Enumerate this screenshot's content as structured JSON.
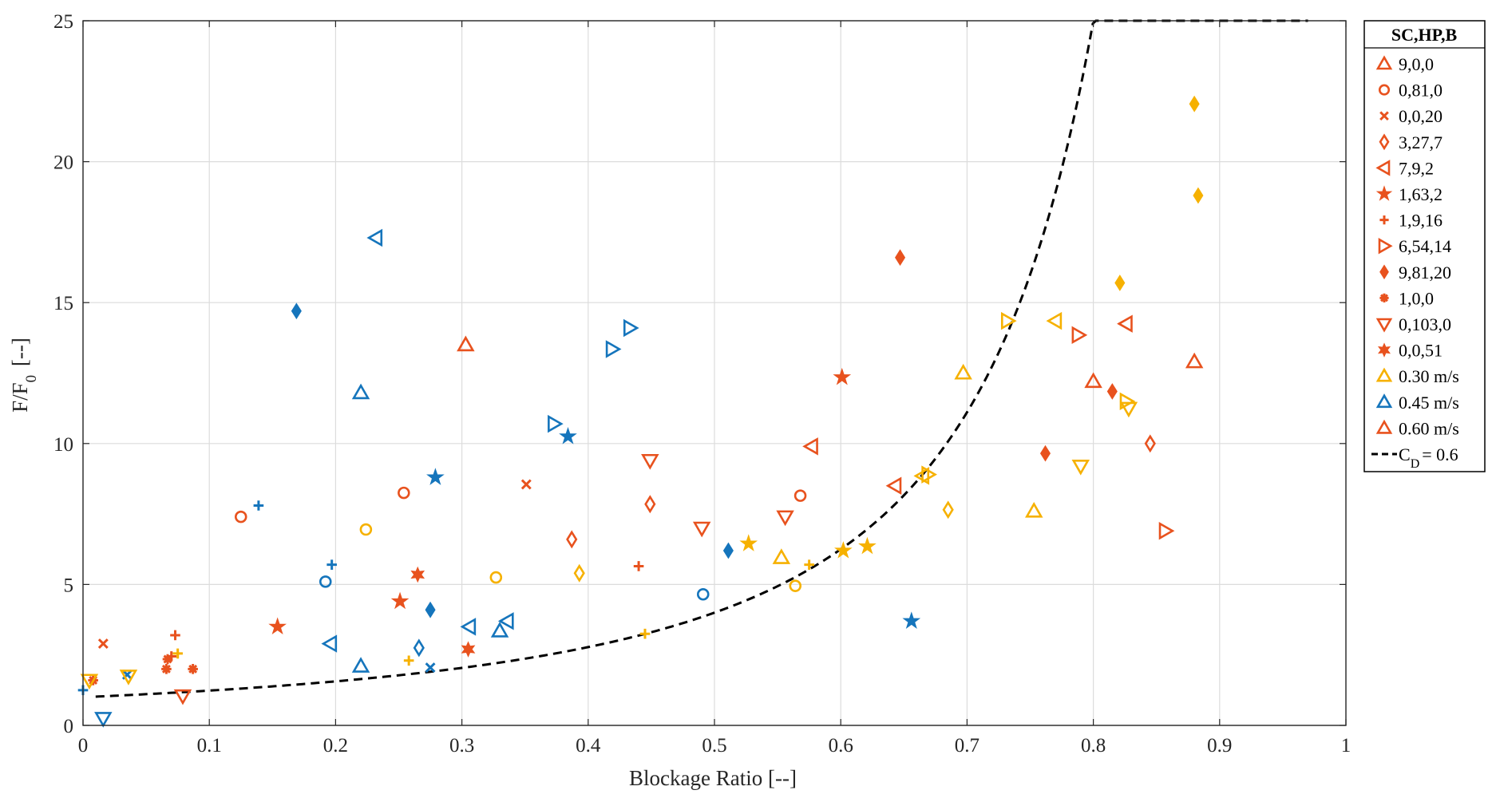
{
  "colors": {
    "orange": "#E8521E",
    "blue": "#1575BC",
    "yellow": "#F6B100",
    "curve": "#000000"
  },
  "chart_data": {
    "type": "scatter",
    "title": "",
    "xlabel": "Blockage Ratio [--]",
    "ylabel_main": "F/F",
    "ylabel_sub": "0",
    "ylabel_tail": " [--]",
    "xlim": [
      0,
      1
    ],
    "ylim": [
      0,
      25
    ],
    "xticks": [
      0,
      0.1,
      0.2,
      0.3,
      0.4,
      0.5,
      0.6,
      0.7,
      0.8,
      0.9,
      1
    ],
    "xtick_labels": [
      "0",
      "0.1",
      "0.2",
      "0.3",
      "0.4",
      "0.5",
      "0.6",
      "0.7",
      "0.8",
      "0.9",
      "1"
    ],
    "yticks": [
      0,
      5,
      10,
      15,
      20,
      25
    ],
    "ytick_labels": [
      "0",
      "5",
      "10",
      "15",
      "20",
      "25"
    ],
    "grid": true,
    "legend_title": "SC,HP,B",
    "legend_position": "outside-right",
    "legend": [
      {
        "label": "9,0,0",
        "marker": "triangle-up"
      },
      {
        "label": "0,81,0",
        "marker": "circle"
      },
      {
        "label": "0,0,20",
        "marker": "x"
      },
      {
        "label": "3,27,7",
        "marker": "diamond"
      },
      {
        "label": "7,9,2",
        "marker": "triangle-left"
      },
      {
        "label": "1,63,2",
        "marker": "star"
      },
      {
        "label": "1,9,16",
        "marker": "plus"
      },
      {
        "label": "6,54,14",
        "marker": "triangle-right"
      },
      {
        "label": "9,81,20",
        "marker": "diamond-filled"
      },
      {
        "label": "1,0,0",
        "marker": "asterisk"
      },
      {
        "label": "0,103,0",
        "marker": "triangle-down"
      },
      {
        "label": "0,0,51",
        "marker": "hexagram"
      },
      {
        "label": "0.30 m/s",
        "marker": "triangle-up",
        "color": "yellow"
      },
      {
        "label": "0.45 m/s",
        "marker": "triangle-up",
        "color": "blue"
      },
      {
        "label": "0.60 m/s",
        "marker": "triangle-up",
        "color": "orange"
      },
      {
        "label": "= 0.6",
        "label_prefix": "C",
        "label_sub": "D",
        "marker": "dashed-line"
      }
    ],
    "curve": {
      "name": "C_D = 0.6",
      "formula": "1/(1-x)^2",
      "x_range": [
        0.01,
        0.97
      ]
    },
    "points": [
      {
        "x": 0.303,
        "y": 13.5,
        "m": "triangle-up",
        "c": "orange"
      },
      {
        "x": 0.8,
        "y": 12.2,
        "m": "triangle-up",
        "c": "orange"
      },
      {
        "x": 0.88,
        "y": 12.9,
        "m": "triangle-up",
        "c": "orange"
      },
      {
        "x": 0.22,
        "y": 11.8,
        "m": "triangle-up",
        "c": "blue"
      },
      {
        "x": 0.22,
        "y": 2.1,
        "m": "triangle-up",
        "c": "blue"
      },
      {
        "x": 0.33,
        "y": 3.35,
        "m": "triangle-up",
        "c": "blue"
      },
      {
        "x": 0.553,
        "y": 5.95,
        "m": "triangle-up",
        "c": "yellow"
      },
      {
        "x": 0.697,
        "y": 12.5,
        "m": "triangle-up",
        "c": "yellow"
      },
      {
        "x": 0.753,
        "y": 7.6,
        "m": "triangle-up",
        "c": "yellow"
      },
      {
        "x": 0.125,
        "y": 7.4,
        "m": "circle",
        "c": "orange"
      },
      {
        "x": 0.254,
        "y": 8.25,
        "m": "circle",
        "c": "orange"
      },
      {
        "x": 0.568,
        "y": 8.15,
        "m": "circle",
        "c": "orange"
      },
      {
        "x": 0.192,
        "y": 5.1,
        "m": "circle",
        "c": "blue"
      },
      {
        "x": 0.491,
        "y": 4.65,
        "m": "circle",
        "c": "blue"
      },
      {
        "x": 0.224,
        "y": 6.95,
        "m": "circle",
        "c": "yellow"
      },
      {
        "x": 0.327,
        "y": 5.25,
        "m": "circle",
        "c": "yellow"
      },
      {
        "x": 0.564,
        "y": 4.95,
        "m": "circle",
        "c": "yellow"
      },
      {
        "x": 0.016,
        "y": 2.9,
        "m": "x",
        "c": "orange"
      },
      {
        "x": 0.351,
        "y": 8.55,
        "m": "x",
        "c": "orange"
      },
      {
        "x": 0.035,
        "y": 1.8,
        "m": "x",
        "c": "blue"
      },
      {
        "x": 0.275,
        "y": 2.05,
        "m": "x",
        "c": "blue"
      },
      {
        "x": 0.387,
        "y": 6.6,
        "m": "diamond",
        "c": "orange"
      },
      {
        "x": 0.449,
        "y": 7.85,
        "m": "diamond",
        "c": "orange"
      },
      {
        "x": 0.845,
        "y": 10.0,
        "m": "diamond",
        "c": "orange"
      },
      {
        "x": 0.266,
        "y": 2.75,
        "m": "diamond",
        "c": "blue"
      },
      {
        "x": 0.393,
        "y": 5.4,
        "m": "diamond",
        "c": "yellow"
      },
      {
        "x": 0.685,
        "y": 7.65,
        "m": "diamond",
        "c": "yellow"
      },
      {
        "x": 0.577,
        "y": 9.9,
        "m": "triangle-left",
        "c": "orange"
      },
      {
        "x": 0.643,
        "y": 8.5,
        "m": "triangle-left",
        "c": "orange"
      },
      {
        "x": 0.826,
        "y": 14.25,
        "m": "triangle-left",
        "c": "orange"
      },
      {
        "x": 0.232,
        "y": 17.3,
        "m": "triangle-left",
        "c": "blue"
      },
      {
        "x": 0.196,
        "y": 2.9,
        "m": "triangle-left",
        "c": "blue"
      },
      {
        "x": 0.306,
        "y": 3.5,
        "m": "triangle-left",
        "c": "blue"
      },
      {
        "x": 0.336,
        "y": 3.7,
        "m": "triangle-left",
        "c": "blue"
      },
      {
        "x": 0.77,
        "y": 14.35,
        "m": "triangle-left",
        "c": "yellow"
      },
      {
        "x": 0.154,
        "y": 3.5,
        "m": "star",
        "c": "orange"
      },
      {
        "x": 0.251,
        "y": 4.4,
        "m": "star",
        "c": "orange"
      },
      {
        "x": 0.601,
        "y": 12.35,
        "m": "star",
        "c": "orange"
      },
      {
        "x": 0.279,
        "y": 8.8,
        "m": "star",
        "c": "blue"
      },
      {
        "x": 0.384,
        "y": 10.25,
        "m": "star",
        "c": "blue"
      },
      {
        "x": 0.656,
        "y": 3.7,
        "m": "star",
        "c": "blue"
      },
      {
        "x": 0.527,
        "y": 6.45,
        "m": "star",
        "c": "yellow"
      },
      {
        "x": 0.602,
        "y": 6.2,
        "m": "star",
        "c": "yellow"
      },
      {
        "x": 0.621,
        "y": 6.35,
        "m": "star",
        "c": "yellow"
      },
      {
        "x": 0.073,
        "y": 3.2,
        "m": "plus",
        "c": "orange"
      },
      {
        "x": 0.44,
        "y": 5.65,
        "m": "plus",
        "c": "orange"
      },
      {
        "x": 0.139,
        "y": 7.8,
        "m": "plus",
        "c": "blue"
      },
      {
        "x": 0.197,
        "y": 5.7,
        "m": "plus",
        "c": "blue"
      },
      {
        "x": 0.0,
        "y": 1.25,
        "m": "plus",
        "c": "blue"
      },
      {
        "x": 0.258,
        "y": 2.3,
        "m": "plus",
        "c": "yellow"
      },
      {
        "x": 0.445,
        "y": 3.25,
        "m": "plus",
        "c": "yellow"
      },
      {
        "x": 0.575,
        "y": 5.7,
        "m": "plus",
        "c": "yellow"
      },
      {
        "x": 0.449,
        "y": 9.4,
        "m": "triangle-down",
        "c": "orange"
      },
      {
        "x": 0.49,
        "y": 7.0,
        "m": "triangle-down",
        "c": "orange"
      },
      {
        "x": 0.556,
        "y": 7.4,
        "m": "triangle-down",
        "c": "orange"
      },
      {
        "x": 0.016,
        "y": 0.25,
        "m": "triangle-down",
        "c": "blue"
      },
      {
        "x": 0.79,
        "y": 9.2,
        "m": "triangle-down",
        "c": "yellow"
      },
      {
        "x": 0.828,
        "y": 11.25,
        "m": "triangle-down",
        "c": "yellow"
      },
      {
        "x": 0.788,
        "y": 13.85,
        "m": "triangle-right",
        "c": "orange"
      },
      {
        "x": 0.857,
        "y": 6.9,
        "m": "triangle-right",
        "c": "orange"
      },
      {
        "x": 0.373,
        "y": 10.7,
        "m": "triangle-right",
        "c": "blue"
      },
      {
        "x": 0.419,
        "y": 13.35,
        "m": "triangle-right",
        "c": "blue"
      },
      {
        "x": 0.433,
        "y": 14.1,
        "m": "triangle-right",
        "c": "blue"
      },
      {
        "x": 0.732,
        "y": 14.35,
        "m": "triangle-right",
        "c": "yellow"
      },
      {
        "x": 0.826,
        "y": 11.5,
        "m": "triangle-right",
        "c": "yellow"
      },
      {
        "x": 0.647,
        "y": 16.6,
        "m": "diamond-filled",
        "c": "orange"
      },
      {
        "x": 0.762,
        "y": 9.65,
        "m": "diamond-filled",
        "c": "orange"
      },
      {
        "x": 0.815,
        "y": 11.85,
        "m": "diamond-filled",
        "c": "orange"
      },
      {
        "x": 0.169,
        "y": 14.7,
        "m": "diamond-filled",
        "c": "blue"
      },
      {
        "x": 0.275,
        "y": 4.1,
        "m": "diamond-filled",
        "c": "blue"
      },
      {
        "x": 0.511,
        "y": 6.2,
        "m": "diamond-filled",
        "c": "blue"
      },
      {
        "x": 0.821,
        "y": 15.7,
        "m": "diamond-filled",
        "c": "yellow"
      },
      {
        "x": 0.88,
        "y": 22.05,
        "m": "diamond-filled",
        "c": "yellow"
      },
      {
        "x": 0.883,
        "y": 18.8,
        "m": "diamond-filled",
        "c": "yellow"
      },
      {
        "x": 0.066,
        "y": 2.0,
        "m": "asterisk",
        "c": "orange"
      },
      {
        "x": 0.067,
        "y": 2.35,
        "m": "asterisk",
        "c": "orange"
      },
      {
        "x": 0.087,
        "y": 2.0,
        "m": "asterisk",
        "c": "orange"
      },
      {
        "x": 0.008,
        "y": 1.6,
        "m": "asterisk",
        "c": "orange"
      },
      {
        "x": 0.079,
        "y": 1.05,
        "m": "triangle-down",
        "c": "orange"
      },
      {
        "x": 0.005,
        "y": 1.6,
        "m": "triangle-down",
        "c": "yellow"
      },
      {
        "x": 0.036,
        "y": 1.75,
        "m": "triangle-down",
        "c": "yellow"
      },
      {
        "x": 0.075,
        "y": 2.55,
        "m": "plus",
        "c": "yellow"
      },
      {
        "x": 0.07,
        "y": 2.45,
        "m": "plus",
        "c": "orange"
      },
      {
        "x": 0.265,
        "y": 5.35,
        "m": "hexagram",
        "c": "orange"
      },
      {
        "x": 0.305,
        "y": 2.7,
        "m": "hexagram",
        "c": "orange"
      },
      {
        "x": 0.665,
        "y": 8.85,
        "m": "triangle-left",
        "c": "yellow"
      },
      {
        "x": 0.669,
        "y": 8.9,
        "m": "triangle-right",
        "c": "yellow"
      }
    ]
  }
}
